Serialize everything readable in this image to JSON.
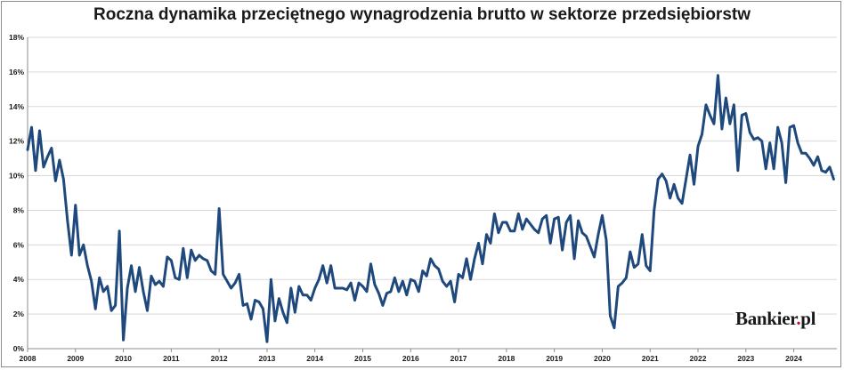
{
  "title": "Roczna dynamika przeciętnego wynagrodzenia brutto w sektorze przedsiębiorstw",
  "logo": {
    "text_a": "Bankier",
    "dot": ".",
    "text_b": "pl"
  },
  "colors": {
    "line": "#1f497d",
    "grid": "#d9d9d9",
    "axis": "#8c8c8c",
    "text": "#1a1a1a",
    "logo_dot": "#c8102e"
  },
  "chart_data": {
    "type": "line",
    "title": "Roczna dynamika przeciętnego wynagrodzenia brutto w sektorze przedsiębiorstw",
    "xlabel": "",
    "ylabel": "",
    "x_range": [
      2008,
      2024.9
    ],
    "ylim": [
      0,
      18
    ],
    "y_ticks": [
      0,
      2,
      4,
      6,
      8,
      10,
      12,
      14,
      16,
      18
    ],
    "y_tick_labels": [
      "0%",
      "2%",
      "4%",
      "6%",
      "8%",
      "10%",
      "12%",
      "14%",
      "16%",
      "18%"
    ],
    "x_ticks": [
      2008,
      2009,
      2010,
      2011,
      2012,
      2013,
      2014,
      2015,
      2016,
      2017,
      2018,
      2019,
      2020,
      2021,
      2022,
      2023,
      2024
    ],
    "x_tick_labels": [
      "2008",
      "2009",
      "2010",
      "2011",
      "2012",
      "2013",
      "2014",
      "2015",
      "2016",
      "2017",
      "2018",
      "2019",
      "2020",
      "2021",
      "2022",
      "2023",
      "2024"
    ],
    "grid": "horizontal",
    "legend": "none",
    "start": "2008-01",
    "frequency": "monthly",
    "series": [
      {
        "values": [
          11.5,
          12.8,
          10.3,
          12.6,
          10.5,
          11.1,
          11.6,
          9.7,
          10.9,
          9.8,
          7.4,
          5.4,
          8.3,
          5.4,
          6.0,
          4.8,
          3.9,
          2.3,
          4.1,
          3.3,
          3.6,
          2.2,
          2.5,
          6.8,
          0.5,
          3.5,
          4.8,
          3.3,
          4.7,
          3.3,
          2.2,
          4.2,
          3.7,
          3.9,
          3.6,
          5.3,
          5.1,
          4.1,
          4.0,
          5.8,
          4.1,
          5.7,
          5.1,
          5.4,
          5.2,
          5.1,
          4.5,
          4.3,
          8.1,
          4.3,
          3.9,
          3.5,
          3.8,
          4.3,
          2.5,
          2.6,
          1.7,
          2.8,
          2.7,
          2.3,
          0.4,
          4.0,
          1.6,
          2.9,
          2.1,
          1.5,
          3.5,
          2.1,
          3.6,
          3.1,
          3.1,
          2.8,
          3.5,
          4.0,
          4.8,
          3.8,
          4.8,
          3.5,
          3.5,
          3.5,
          3.4,
          3.8,
          2.8,
          3.8,
          3.6,
          3.3,
          4.9,
          3.7,
          3.2,
          2.5,
          3.2,
          3.3,
          4.1,
          3.3,
          3.9,
          3.1,
          4.0,
          3.9,
          3.3,
          4.5,
          4.2,
          5.2,
          4.8,
          4.6,
          3.9,
          3.6,
          3.9,
          2.7,
          4.3,
          4.1,
          5.2,
          4.0,
          5.2,
          6.1,
          4.9,
          6.6,
          6.1,
          7.8,
          6.7,
          7.3,
          7.3,
          6.8,
          6.8,
          7.8,
          6.9,
          7.5,
          7.2,
          6.9,
          6.7,
          7.5,
          7.7,
          6.1,
          7.5,
          7.6,
          5.7,
          7.3,
          7.7,
          5.2,
          7.4,
          6.7,
          6.5,
          5.9,
          5.3,
          6.6,
          7.7,
          6.3,
          1.9,
          1.2,
          3.6,
          3.8,
          4.1,
          5.6,
          4.7,
          4.9,
          6.6,
          4.8,
          4.5,
          8.0,
          9.8,
          10.1,
          9.7,
          8.7,
          9.5,
          8.7,
          8.4,
          9.8,
          11.2,
          9.5,
          11.7,
          12.4,
          14.1,
          13.5,
          13.0,
          15.8,
          12.7,
          14.5,
          13.0,
          14.1,
          10.3,
          13.5,
          13.6,
          12.5,
          12.1,
          12.2,
          12.0,
          10.4,
          11.9,
          10.4,
          12.8,
          11.9,
          9.6,
          12.8,
          12.9,
          11.9,
          11.3,
          11.3,
          11.0,
          10.6,
          11.1,
          10.3,
          10.2,
          10.5,
          9.8
        ]
      }
    ]
  }
}
